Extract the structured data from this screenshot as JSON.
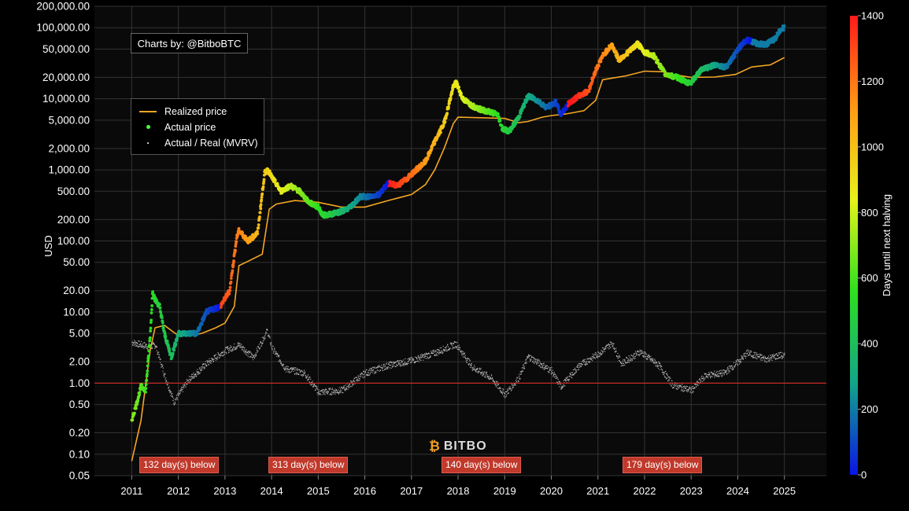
{
  "credit": "Charts by: @BitboBTC",
  "logo_text": "BITBO",
  "legend": [
    {
      "label": "Realized price",
      "symbol": "line"
    },
    {
      "label": "Actual price",
      "symbol": "dot"
    },
    {
      "label": "Actual / Real (MVRV)",
      "symbol": "tiny"
    }
  ],
  "below_labels": [
    {
      "text": "132 day(s) below",
      "year": 2011.15
    },
    {
      "text": "313 day(s) below",
      "year": 2014.0
    },
    {
      "text": "140 day(s) below",
      "year": 2017.78
    },
    {
      "text": "179 day(s) below",
      "year": 2021.62
    }
  ],
  "colors": {
    "realized": "#f5a623",
    "mvrv": "#bbbbbb",
    "threshold": "#c62828",
    "grid": "#333333",
    "colorbar": [
      "#0a14e6",
      "#12a58a",
      "#2ee01e",
      "#e8f21a",
      "#ff9a14",
      "#ff1a1a"
    ]
  },
  "chart_data": {
    "type": "scatter",
    "y_scale": "log",
    "ylabel": "USD",
    "ylim": [
      0.05,
      200000
    ],
    "yticks": [
      200000,
      100000,
      50000,
      20000,
      10000,
      5000,
      2000,
      1000,
      500,
      200,
      100,
      50,
      20,
      10,
      5,
      2,
      1,
      0.5,
      0.2,
      0.1,
      0.05
    ],
    "ytick_labels": [
      "200,000.00",
      "100,000.00",
      "50,000.00",
      "20,000.00",
      "10,000.00",
      "5,000.00",
      "2,000.00",
      "1,000.00",
      "500.00",
      "200.00",
      "100.00",
      "50.00",
      "20.00",
      "10.00",
      "5.00",
      "2.00",
      "1.00",
      "0.50",
      "0.20",
      "0.10",
      "0.05"
    ],
    "xlim": [
      2010.2,
      2025.9
    ],
    "xticks": [
      "2011",
      "2012",
      "2013",
      "2014",
      "2015",
      "2016",
      "2017",
      "2018",
      "2019",
      "2020",
      "2021",
      "2022",
      "2023",
      "2024",
      "2025"
    ],
    "threshold_line": 1.0,
    "colorbar": {
      "label": "Days until next halving",
      "range": [
        0,
        1400
      ],
      "ticks": [
        "0",
        "200",
        "400",
        "600",
        "800",
        "1000",
        "1200",
        "1400"
      ]
    },
    "halvings": [
      2012.91,
      2016.52,
      2020.36,
      2024.3
    ],
    "series": [
      {
        "name": "Actual price",
        "x": [
          2011.0,
          2011.1,
          2011.2,
          2011.3,
          2011.4,
          2011.45,
          2011.5,
          2011.6,
          2011.7,
          2011.8,
          2011.85,
          2011.9,
          2012.0,
          2012.2,
          2012.4,
          2012.6,
          2012.75,
          2012.9,
          2013.1,
          2013.25,
          2013.3,
          2013.5,
          2013.7,
          2013.85,
          2013.92,
          2014.0,
          2014.2,
          2014.4,
          2014.6,
          2014.8,
          2015.0,
          2015.1,
          2015.3,
          2015.5,
          2015.7,
          2015.9,
          2016.1,
          2016.3,
          2016.5,
          2016.7,
          2016.9,
          2017.1,
          2017.3,
          2017.5,
          2017.7,
          2017.9,
          2017.96,
          2018.1,
          2018.3,
          2018.5,
          2018.7,
          2018.85,
          2018.95,
          2019.1,
          2019.3,
          2019.5,
          2019.7,
          2019.9,
          2020.1,
          2020.2,
          2020.4,
          2020.6,
          2020.8,
          2020.95,
          2021.1,
          2021.3,
          2021.45,
          2021.55,
          2021.7,
          2021.85,
          2022.0,
          2022.2,
          2022.45,
          2022.7,
          2022.9,
          2023.0,
          2023.2,
          2023.5,
          2023.75,
          2023.95,
          2024.1,
          2024.2,
          2024.4,
          2024.6,
          2024.8,
          2024.92,
          2025.0
        ],
        "y": [
          0.3,
          0.5,
          0.9,
          0.8,
          5,
          20,
          15,
          12,
          5,
          3,
          2.3,
          3,
          5,
          5,
          5,
          10,
          11,
          12,
          20,
          110,
          140,
          100,
          130,
          900,
          1000,
          800,
          500,
          600,
          500,
          350,
          300,
          230,
          240,
          260,
          300,
          420,
          420,
          450,
          650,
          600,
          750,
          1000,
          1300,
          2500,
          4500,
          15000,
          17000,
          10000,
          8000,
          7000,
          6500,
          6000,
          3800,
          3500,
          5500,
          11000,
          9500,
          7500,
          9000,
          6000,
          9000,
          11000,
          13000,
          25000,
          40000,
          58000,
          35000,
          40000,
          48000,
          60000,
          45000,
          40000,
          22000,
          20000,
          17000,
          17000,
          25000,
          30000,
          28000,
          43000,
          60000,
          68000,
          60000,
          58000,
          70000,
          95000,
          100000
        ]
      },
      {
        "name": "Realized price",
        "x": [
          2011.0,
          2011.2,
          2011.4,
          2011.5,
          2011.7,
          2011.9,
          2012.0,
          2012.2,
          2012.5,
          2012.8,
          2013.0,
          2013.2,
          2013.3,
          2013.5,
          2013.8,
          2013.95,
          2014.1,
          2014.5,
          2015.0,
          2015.5,
          2016.0,
          2016.5,
          2017.0,
          2017.3,
          2017.5,
          2017.7,
          2017.9,
          2018.0,
          2018.5,
          2019.0,
          2019.3,
          2019.5,
          2019.8,
          2020.0,
          2020.3,
          2020.7,
          2020.95,
          2021.1,
          2021.3,
          2021.6,
          2022.0,
          2022.4,
          2022.6,
          2023.0,
          2023.5,
          2023.95,
          2024.3,
          2024.7,
          2025.0
        ],
        "y": [
          0.08,
          0.3,
          3,
          6,
          6.5,
          5.2,
          4.7,
          4.6,
          5,
          6,
          7,
          12,
          45,
          52,
          65,
          280,
          330,
          370,
          350,
          300,
          300,
          370,
          450,
          620,
          1000,
          2000,
          4500,
          5500,
          5400,
          5300,
          4600,
          4800,
          5500,
          5800,
          6100,
          6800,
          9500,
          18500,
          19500,
          21000,
          24500,
          24000,
          22000,
          20000,
          20200,
          22000,
          28000,
          30000,
          38000
        ]
      },
      {
        "name": "Actual / Real (MVRV)",
        "x": [
          2011.0,
          2011.2,
          2011.4,
          2011.5,
          2011.7,
          2011.9,
          2012.2,
          2012.6,
          2013.0,
          2013.3,
          2013.6,
          2013.9,
          2014.0,
          2014.3,
          2014.7,
          2015.0,
          2015.5,
          2016.0,
          2016.5,
          2017.0,
          2017.5,
          2017.95,
          2018.3,
          2018.7,
          2019.0,
          2019.3,
          2019.5,
          2020.0,
          2020.2,
          2020.6,
          2021.0,
          2021.3,
          2021.5,
          2021.9,
          2022.3,
          2022.6,
          2023.0,
          2023.3,
          2023.7,
          2024.0,
          2024.2,
          2024.6,
          2024.9,
          2025.0
        ],
        "y": [
          3.8,
          3.5,
          3.3,
          3.5,
          1.3,
          0.55,
          1.1,
          1.9,
          2.9,
          3.5,
          2.3,
          5.5,
          3.2,
          1.6,
          1.4,
          0.75,
          0.8,
          1.4,
          1.8,
          2.1,
          2.7,
          3.6,
          1.7,
          1.2,
          0.7,
          1.2,
          2.4,
          1.5,
          0.9,
          1.8,
          2.6,
          3.7,
          1.9,
          2.8,
          1.8,
          0.95,
          0.8,
          1.3,
          1.4,
          2.0,
          2.7,
          2.2,
          2.5,
          2.4
        ]
      }
    ]
  }
}
